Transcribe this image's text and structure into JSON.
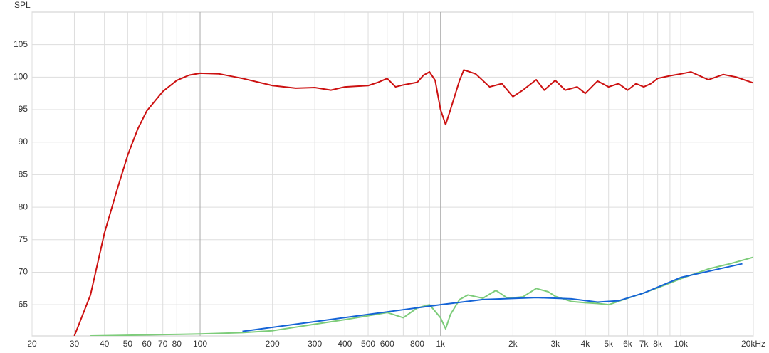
{
  "chart_data": {
    "type": "line",
    "y_label": "SPL",
    "xscale": "log",
    "xlim": [
      20,
      20000
    ],
    "ylim": [
      60.2,
      110
    ],
    "yticks": [
      65,
      70,
      75,
      80,
      85,
      90,
      95,
      100,
      105
    ],
    "xticks": [
      20,
      30,
      40,
      50,
      60,
      70,
      80,
      100,
      200,
      300,
      400,
      500,
      600,
      800,
      {
        "value": 1000,
        "label": "1k"
      },
      {
        "value": 2000,
        "label": "2k"
      },
      {
        "value": 3000,
        "label": "3k"
      },
      {
        "value": 4000,
        "label": "4k"
      },
      {
        "value": 5000,
        "label": "5k"
      },
      {
        "value": 6000,
        "label": "6k"
      },
      {
        "value": 7000,
        "label": "7k"
      },
      {
        "value": 8000,
        "label": "8k"
      },
      {
        "value": 10000,
        "label": "10k"
      },
      {
        "value": 20000,
        "label": "20kHz"
      }
    ],
    "xgrid_minor": [
      90,
      700,
      900,
      9000
    ],
    "xgrid_major": [
      100,
      1000,
      10000
    ],
    "grid": true,
    "series": [
      {
        "color": "#cc1111",
        "x": [
          30,
          35,
          40,
          45,
          50,
          55,
          60,
          70,
          80,
          90,
          100,
          120,
          150,
          200,
          250,
          300,
          350,
          400,
          450,
          500,
          550,
          600,
          650,
          700,
          800,
          850,
          900,
          950,
          1000,
          1050,
          1100,
          1200,
          1250,
          1400,
          1600,
          1800,
          2000,
          2200,
          2500,
          2700,
          3000,
          3300,
          3700,
          4000,
          4500,
          5000,
          5500,
          6000,
          6500,
          7000,
          7500,
          8000,
          9000,
          10000,
          11000,
          13000,
          15000,
          17000,
          20000
        ],
        "values": [
          60.2,
          66.5,
          76,
          82.5,
          88,
          92,
          94.8,
          97.8,
          99.5,
          100.3,
          100.6,
          100.5,
          99.8,
          98.7,
          98.3,
          98.4,
          98,
          98.5,
          98.6,
          98.7,
          99.2,
          99.8,
          98.5,
          98.8,
          99.2,
          100.3,
          100.8,
          99.5,
          95,
          92.7,
          95,
          99.5,
          101.1,
          100.5,
          98.5,
          99,
          97,
          98,
          99.6,
          98,
          99.5,
          98,
          98.5,
          97.5,
          99.4,
          98.5,
          99,
          98,
          99,
          98.5,
          99,
          99.8,
          100.2,
          100.5,
          100.8,
          99.6,
          100.4,
          100,
          99.1
        ]
      },
      {
        "color": "#7dcc7a",
        "x": [
          35,
          50,
          70,
          100,
          150,
          200,
          300,
          400,
          500,
          600,
          700,
          800,
          900,
          1000,
          1050,
          1100,
          1200,
          1300,
          1500,
          1700,
          1900,
          2200,
          2500,
          2800,
          3000,
          3500,
          4000,
          4500,
          5000,
          6000,
          7000,
          8000,
          10000,
          13000,
          16000,
          20000
        ],
        "values": [
          60.2,
          60.3,
          60.4,
          60.5,
          60.7,
          61,
          62,
          62.7,
          63.3,
          63.8,
          63,
          64.5,
          65,
          63,
          61.3,
          63.5,
          65.8,
          66.5,
          66,
          67.2,
          66,
          66.2,
          67.5,
          67,
          66.3,
          65.5,
          65.3,
          65.2,
          65,
          66,
          66.8,
          67.6,
          69,
          70.5,
          71.3,
          72.3
        ]
      },
      {
        "color": "#1463d6",
        "x": [
          150,
          300,
          600,
          1000,
          1500,
          2500,
          3500,
          4500,
          5500,
          7000,
          10000,
          14000,
          18000
        ],
        "values": [
          60.9,
          62.4,
          63.9,
          65,
          65.8,
          66.1,
          65.9,
          65.4,
          65.6,
          66.8,
          69.2,
          70.4,
          71.3
        ]
      }
    ]
  }
}
